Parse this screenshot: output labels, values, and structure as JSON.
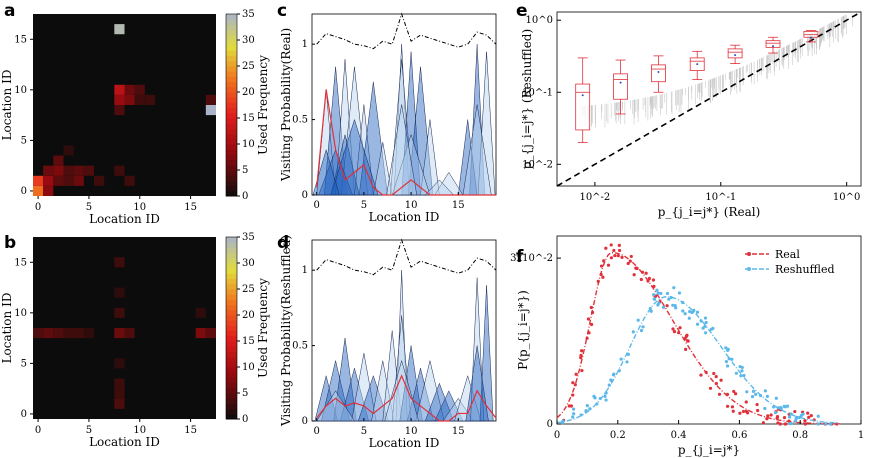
{
  "panels": {
    "a": {
      "letter": "a"
    },
    "b": {
      "letter": "b"
    },
    "c": {
      "letter": "c"
    },
    "d": {
      "letter": "d"
    },
    "e": {
      "letter": "e"
    },
    "f": {
      "letter": "f"
    }
  },
  "colors": {
    "real": "#e0303a",
    "reshuffled": "#5bb8ea",
    "fill_dark": "#1f5fbf",
    "fill_light": "#b9d3ee"
  },
  "chart_data": [
    {
      "id": "a",
      "type": "heatmap",
      "xlabel": "Location ID",
      "ylabel": "Location ID",
      "xticks": [
        "0",
        "5",
        "10",
        "15"
      ],
      "yticks": [
        "0",
        "5",
        "10",
        "15"
      ],
      "colorbar": {
        "label": "Used Frequency",
        "ticks": [
          "0",
          "5",
          "10",
          "15",
          "20",
          "25",
          "30",
          "35"
        ],
        "range": [
          0,
          35
        ]
      },
      "cells": [
        [
          0,
          0,
          22
        ],
        [
          0,
          1,
          18
        ],
        [
          1,
          1,
          9
        ],
        [
          1,
          2,
          6
        ],
        [
          2,
          2,
          7
        ],
        [
          2,
          3,
          5
        ],
        [
          3,
          2,
          4
        ],
        [
          4,
          1,
          6
        ],
        [
          4,
          2,
          5
        ],
        [
          5,
          2,
          4
        ],
        [
          6,
          1,
          3
        ],
        [
          3,
          4,
          2
        ],
        [
          8,
          16,
          34
        ],
        [
          8,
          10,
          12
        ],
        [
          8,
          9,
          9
        ],
        [
          8,
          8,
          4
        ],
        [
          9,
          10,
          6
        ],
        [
          9,
          9,
          7
        ],
        [
          10,
          10,
          4
        ],
        [
          10,
          9,
          3
        ],
        [
          11,
          9,
          3
        ],
        [
          17,
          8,
          36
        ],
        [
          17,
          9,
          4
        ],
        [
          8,
          2,
          3
        ],
        [
          9,
          1,
          3
        ],
        [
          1,
          0,
          8
        ],
        [
          2,
          1,
          5
        ],
        [
          3,
          1,
          4
        ]
      ]
    },
    {
      "id": "b",
      "type": "heatmap",
      "xlabel": "Location ID",
      "ylabel": "Location ID",
      "xticks": [
        "0",
        "5",
        "10",
        "15"
      ],
      "yticks": [
        "0",
        "5",
        "10",
        "15"
      ],
      "colorbar": {
        "label": "Used Frequency",
        "ticks": [
          "0",
          "5",
          "10",
          "15",
          "20",
          "25",
          "30",
          "35"
        ],
        "range": [
          0,
          35
        ]
      },
      "cells": [
        [
          0,
          8,
          4
        ],
        [
          1,
          8,
          5
        ],
        [
          2,
          8,
          4
        ],
        [
          3,
          8,
          3
        ],
        [
          4,
          8,
          3
        ],
        [
          5,
          8,
          2
        ],
        [
          8,
          8,
          6
        ],
        [
          8,
          1,
          4
        ],
        [
          8,
          2,
          3
        ],
        [
          8,
          3,
          3
        ],
        [
          8,
          10,
          3
        ],
        [
          8,
          15,
          3
        ],
        [
          9,
          8,
          4
        ],
        [
          16,
          8,
          7
        ],
        [
          17,
          8,
          5
        ],
        [
          16,
          10,
          2
        ],
        [
          8,
          5,
          2
        ],
        [
          8,
          12,
          2
        ]
      ]
    },
    {
      "id": "c",
      "type": "area",
      "xlabel": "Location ID",
      "ylabel": "Visiting Probability(Real)",
      "xticks": [
        "0",
        "5",
        "10",
        "15"
      ],
      "yticks": [
        "0",
        "0.5",
        "1"
      ],
      "ylim": [
        0,
        1.2
      ],
      "xlim": [
        -0.5,
        19
      ],
      "envelope": [
        1.0,
        1.07,
        1.05,
        1.03,
        1.0,
        0.99,
        0.97,
        1.02,
        1.0,
        1.2,
        1.02,
        1.06,
        1.04,
        1.02,
        1.0,
        0.98,
        1.0,
        1.08,
        1.06,
        1.0
      ],
      "red_line": [
        0.05,
        0.7,
        0.3,
        0.1,
        0.15,
        0.2,
        0.05,
        0,
        0,
        0.05,
        0.1,
        0.05,
        0,
        0,
        0,
        0,
        0,
        0,
        0,
        0
      ]
    },
    {
      "id": "d",
      "type": "area",
      "xlabel": "Location ID",
      "ylabel": "Visiting Probability(Reshuffled)",
      "xticks": [
        "0",
        "5",
        "10",
        "15"
      ],
      "yticks": [
        "0",
        "0.5",
        "1"
      ],
      "ylim": [
        0,
        1.2
      ],
      "xlim": [
        -0.5,
        19
      ],
      "envelope": [
        1.0,
        1.07,
        1.05,
        1.03,
        1.0,
        0.99,
        0.97,
        1.02,
        1.0,
        1.2,
        1.02,
        1.06,
        1.04,
        1.02,
        1.0,
        0.98,
        1.0,
        1.08,
        1.06,
        1.0
      ],
      "red_line": [
        0.02,
        0.1,
        0.15,
        0.1,
        0.12,
        0.1,
        0.05,
        0.1,
        0.15,
        0.3,
        0.15,
        0.1,
        0.05,
        0,
        0,
        0.05,
        0.05,
        0.2,
        0.1,
        0.02
      ]
    },
    {
      "id": "e",
      "type": "scatter",
      "xlabel": "p_{j_i=j*} (Real)",
      "ylabel": "p_{j_i=j*} (Reshuffled)",
      "xscale": "log",
      "yscale": "log",
      "xticks": [
        "10^-2",
        "10^-1",
        "10^0"
      ],
      "yticks": [
        "10^-2",
        "10^-1",
        "10^0"
      ],
      "xlim": [
        0.005,
        1.3
      ],
      "ylim": [
        0.005,
        1.3
      ],
      "boxes": [
        {
          "x": 0.008,
          "q1": 0.03,
          "med": 0.1,
          "q3": 0.13,
          "low": 0.02,
          "high": 0.3
        },
        {
          "x": 0.016,
          "q1": 0.08,
          "med": 0.15,
          "q3": 0.18,
          "low": 0.05,
          "high": 0.28
        },
        {
          "x": 0.032,
          "q1": 0.14,
          "med": 0.21,
          "q3": 0.24,
          "low": 0.1,
          "high": 0.32
        },
        {
          "x": 0.065,
          "q1": 0.2,
          "med": 0.27,
          "q3": 0.3,
          "low": 0.15,
          "high": 0.37
        },
        {
          "x": 0.13,
          "q1": 0.3,
          "med": 0.36,
          "q3": 0.4,
          "low": 0.25,
          "high": 0.45
        },
        {
          "x": 0.26,
          "q1": 0.42,
          "med": 0.48,
          "q3": 0.52,
          "low": 0.35,
          "high": 0.58
        },
        {
          "x": 0.52,
          "q1": 0.58,
          "med": 0.63,
          "q3": 0.7,
          "low": 0.5,
          "high": 0.72
        }
      ]
    },
    {
      "id": "f",
      "type": "line",
      "xlabel": "p_{j_i=j*}",
      "ylabel": "P(p_{j_i=j*})",
      "xticks": [
        "0",
        "0.2",
        "0.4",
        "0.6",
        "0.8",
        "1"
      ],
      "yticks": [
        "0",
        "3x10^-2"
      ],
      "xlim": [
        0,
        1
      ],
      "ylim": [
        0,
        0.034
      ],
      "series": [
        {
          "name": "Real",
          "color": "#e0303a",
          "peak_x": 0.18,
          "peak_y": 0.031
        },
        {
          "name": "Reshuffled",
          "color": "#5bb8ea",
          "peak_x": 0.36,
          "peak_y": 0.023
        }
      ],
      "legend": [
        "Real",
        "Reshuffled"
      ]
    }
  ]
}
